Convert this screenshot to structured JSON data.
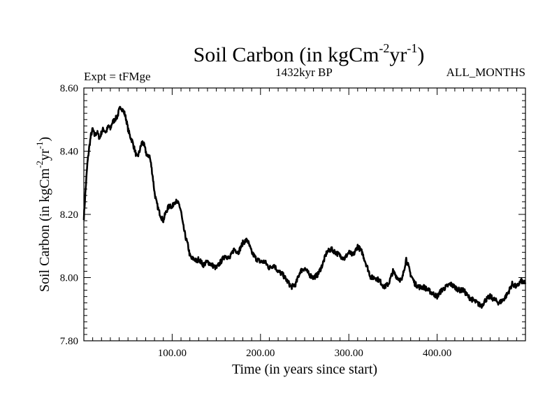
{
  "chart_data": {
    "type": "line",
    "title": "Soil Carbon (in kgCm",
    "title_sup1": "-2",
    "title_mid": "yr",
    "title_sup2": "-1",
    "title_end": ")",
    "subtitle_left": "Expt = tFMge",
    "subtitle_center": "1432kyr BP",
    "subtitle_right": "ALL_MONTHS",
    "xlabel": "Time (in years since start)",
    "ylabel": "Soil Carbon (in kgCm",
    "ylabel_sup1": "-2",
    "ylabel_mid": "yr",
    "ylabel_sup2": "-1",
    "ylabel_end": ")",
    "xlim": [
      0,
      500
    ],
    "ylim": [
      7.8,
      8.6
    ],
    "xticks": [
      100,
      200,
      300,
      400
    ],
    "xtick_labels": [
      "100.00",
      "200.00",
      "300.00",
      "400.00"
    ],
    "yticks": [
      7.8,
      8.0,
      8.2,
      8.4,
      8.6
    ],
    "ytick_labels": [
      "7.80",
      "8.00",
      "8.20",
      "8.40",
      "8.60"
    ],
    "grid": false,
    "series": [
      {
        "name": "Soil Carbon",
        "color": "#000000",
        "noise": 0.008,
        "x": [
          0,
          2,
          4,
          6,
          8,
          10,
          12,
          15,
          18,
          20,
          22,
          25,
          28,
          30,
          32,
          35,
          38,
          40,
          42,
          44,
          46,
          48,
          50,
          52,
          55,
          58,
          60,
          62,
          64,
          66,
          68,
          70,
          72,
          74,
          76,
          78,
          80,
          82,
          85,
          88,
          90,
          92,
          95,
          98,
          100,
          102,
          105,
          108,
          110,
          112,
          115,
          118,
          120,
          122,
          125,
          128,
          130,
          135,
          140,
          145,
          150,
          155,
          160,
          165,
          170,
          175,
          180,
          185,
          190,
          195,
          200,
          205,
          210,
          215,
          220,
          225,
          230,
          235,
          240,
          245,
          250,
          255,
          260,
          265,
          270,
          275,
          280,
          285,
          290,
          295,
          300,
          305,
          310,
          315,
          320,
          325,
          330,
          335,
          340,
          345,
          350,
          355,
          360,
          365,
          370,
          375,
          380,
          385,
          390,
          395,
          400,
          405,
          410,
          415,
          420,
          425,
          430,
          435,
          440,
          445,
          450,
          455,
          460,
          465,
          470,
          475,
          480,
          485,
          490,
          495,
          500
        ],
        "y": [
          8.19,
          8.28,
          8.36,
          8.41,
          8.45,
          8.47,
          8.45,
          8.46,
          8.44,
          8.46,
          8.47,
          8.46,
          8.48,
          8.47,
          8.49,
          8.5,
          8.51,
          8.53,
          8.54,
          8.53,
          8.52,
          8.5,
          8.47,
          8.45,
          8.43,
          8.4,
          8.38,
          8.39,
          8.41,
          8.43,
          8.42,
          8.4,
          8.38,
          8.39,
          8.36,
          8.32,
          8.27,
          8.24,
          8.21,
          8.19,
          8.18,
          8.2,
          8.22,
          8.23,
          8.22,
          8.24,
          8.24,
          8.23,
          8.21,
          8.17,
          8.13,
          8.1,
          8.07,
          8.06,
          8.06,
          8.05,
          8.06,
          8.04,
          8.05,
          8.04,
          8.03,
          8.05,
          8.07,
          8.06,
          8.09,
          8.08,
          8.11,
          8.12,
          8.08,
          8.06,
          8.05,
          8.05,
          8.03,
          8.04,
          8.02,
          8.01,
          7.99,
          7.97,
          7.98,
          8.02,
          8.03,
          8.01,
          8.0,
          8.01,
          8.04,
          8.08,
          8.09,
          8.08,
          8.07,
          8.06,
          8.08,
          8.07,
          8.1,
          8.08,
          8.04,
          8.0,
          8.0,
          7.99,
          7.97,
          7.98,
          8.02,
          8.0,
          7.99,
          8.06,
          8.01,
          7.98,
          7.97,
          7.97,
          7.96,
          7.95,
          7.94,
          7.96,
          7.97,
          7.98,
          7.97,
          7.96,
          7.96,
          7.94,
          7.93,
          7.92,
          7.91,
          7.93,
          7.94,
          7.93,
          7.92,
          7.93,
          7.95,
          7.98,
          7.97,
          7.99,
          7.98
        ]
      }
    ]
  }
}
